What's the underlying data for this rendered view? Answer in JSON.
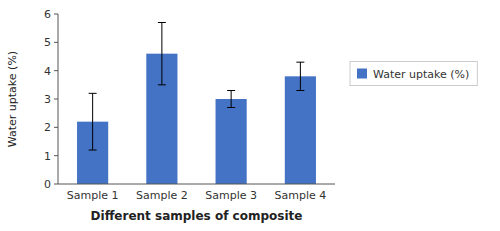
{
  "chart_data": {
    "type": "bar",
    "xlabel": "Different samples of composite",
    "ylabel": "Water uptake (%)",
    "categories": [
      "Sample 1",
      "Sample 2",
      "Sample 3",
      "Sample 4"
    ],
    "series": [
      {
        "name": "Water uptake (%)",
        "color": "#4472C4",
        "values": [
          2.2,
          4.6,
          3.0,
          3.8
        ],
        "errors": [
          1.0,
          1.1,
          0.3,
          0.5
        ]
      }
    ],
    "ylim": [
      0,
      6
    ],
    "yticks": [
      0,
      1,
      2,
      3,
      4,
      5,
      6
    ],
    "grid": false,
    "legend": "right"
  }
}
